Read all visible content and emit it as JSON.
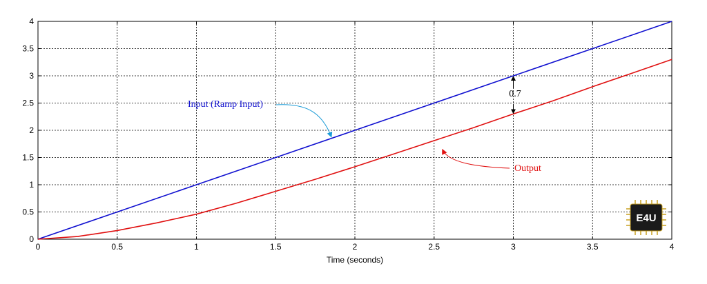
{
  "chart_data": {
    "type": "line",
    "title": "",
    "xlabel": "Time (seconds)",
    "ylabel": "",
    "xlim": [
      0,
      4
    ],
    "ylim": [
      0,
      4
    ],
    "x_ticks": [
      "0",
      "0.5",
      "1",
      "1.5",
      "2",
      "2.5",
      "3",
      "3.5",
      "4"
    ],
    "y_ticks": [
      "0",
      "0.5",
      "1",
      "1.5",
      "2",
      "2.5",
      "3",
      "3.5",
      "4"
    ],
    "grid": true,
    "series": [
      {
        "name": "Input (Ramp Input)",
        "color": "#1010d0",
        "x": [
          0,
          0.5,
          1,
          1.5,
          2,
          2.5,
          3,
          3.5,
          4
        ],
        "y": [
          0,
          0.5,
          1,
          1.5,
          2,
          2.5,
          3,
          3.5,
          4
        ]
      },
      {
        "name": "Output",
        "color": "#e01010",
        "x": [
          0,
          0.25,
          0.5,
          0.75,
          1,
          1.25,
          1.5,
          1.75,
          2,
          2.25,
          2.5,
          2.75,
          3,
          3.25,
          3.5,
          3.75,
          4
        ],
        "y": [
          0,
          0.05,
          0.16,
          0.3,
          0.46,
          0.66,
          0.88,
          1.1,
          1.33,
          1.57,
          1.81,
          2.05,
          2.3,
          2.54,
          2.8,
          3.05,
          3.3
        ]
      }
    ],
    "annotations": [
      {
        "text": "Input (Ramp Input)",
        "color": "#1010d0",
        "points_to": [
          1.85,
          1.85
        ]
      },
      {
        "text": "Output",
        "color": "#e01010",
        "points_to": [
          2.55,
          1.65
        ]
      },
      {
        "text": "0.7",
        "color": "#000000",
        "between": [
          [
            3,
            3
          ],
          [
            3,
            2.3
          ]
        ]
      }
    ],
    "logo": "E4U"
  }
}
